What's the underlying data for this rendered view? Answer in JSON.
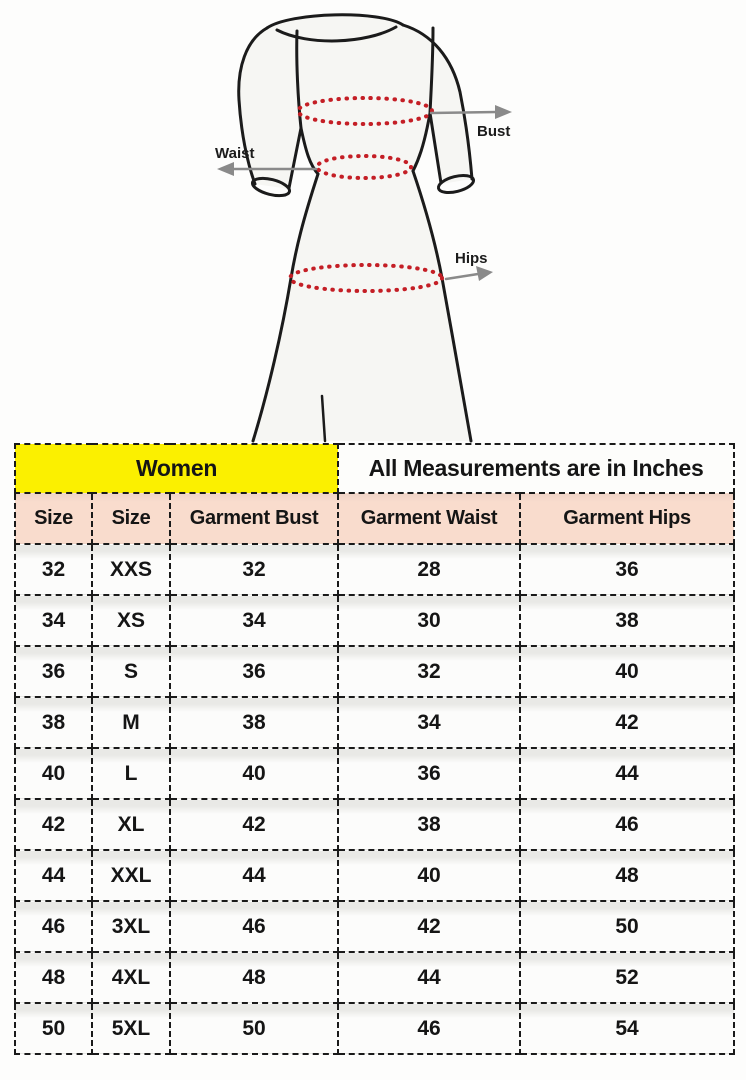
{
  "diagram": {
    "labels": {
      "bust": "Bust",
      "waist": "Waist",
      "hips": "Hips"
    },
    "colors": {
      "outline": "#1b1b1b",
      "dots": "#c41e25",
      "arrow": "#8a8a8a",
      "label_text": "#1c1c1c",
      "garment_fill": "#f6f6f3"
    }
  },
  "table": {
    "banner": {
      "left": "Women",
      "right": "All Measurements are in Inches",
      "left_bg": "#fbf000"
    },
    "header_bg": "#f9dccd",
    "columns": [
      "Size",
      "Size",
      "Garment Bust",
      "Garment Waist",
      "Garment Hips"
    ],
    "rows": [
      [
        "32",
        "XXS",
        "32",
        "28",
        "36"
      ],
      [
        "34",
        "XS",
        "34",
        "30",
        "38"
      ],
      [
        "36",
        "S",
        "36",
        "32",
        "40"
      ],
      [
        "38",
        "M",
        "38",
        "34",
        "42"
      ],
      [
        "40",
        "L",
        "40",
        "36",
        "44"
      ],
      [
        "42",
        "XL",
        "42",
        "38",
        "46"
      ],
      [
        "44",
        "XXL",
        "44",
        "40",
        "48"
      ],
      [
        "46",
        "3XL",
        "46",
        "42",
        "50"
      ],
      [
        "48",
        "4XL",
        "48",
        "44",
        "52"
      ],
      [
        "50",
        "5XL",
        "50",
        "46",
        "54"
      ]
    ]
  }
}
